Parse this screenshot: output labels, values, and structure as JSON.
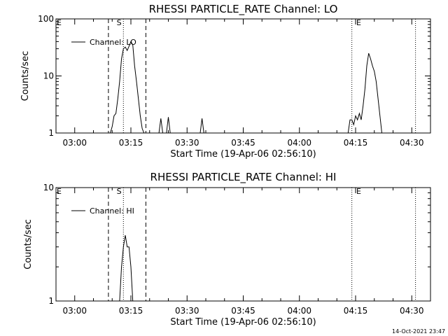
{
  "footer": {
    "timestamp": "14-Oct-2021 23:47"
  },
  "chart_data": [
    {
      "type": "line",
      "title": "RHESSI PARTICLE_RATE Channel: LO",
      "xlabel": "Start Time (19-Apr-06 02:56:10)",
      "ylabel": "Counts/sec",
      "y_scale": "log",
      "ylim": [
        1,
        100
      ],
      "y_ticks": [
        1,
        10,
        100
      ],
      "y_tick_labels": [
        "1",
        "10",
        "100"
      ],
      "xlim": [
        "02:55",
        "04:35"
      ],
      "x_ticks": [
        "03:00",
        "03:15",
        "03:30",
        "03:45",
        "04:00",
        "04:15",
        "04:30"
      ],
      "legend": {
        "position": "top-left",
        "entries": [
          "Channel: LO"
        ]
      },
      "series": [
        {
          "name": "Channel: LO",
          "x": [
            "03:09:30",
            "03:10",
            "03:10:30",
            "03:11",
            "03:11:30",
            "03:12",
            "03:12:30",
            "03:13",
            "03:13:30",
            "03:14",
            "03:14:30",
            "03:15",
            "03:15:30",
            "03:16",
            "03:16:30",
            "03:17",
            "03:17:30",
            "03:18",
            "03:18:30",
            "03:19",
            "03:19:30",
            "03:20",
            "03:22:30",
            "03:23",
            "03:23:30",
            "03:24:30",
            "03:25",
            "03:25:30",
            "03:33:30",
            "03:34",
            "03:34:30",
            "04:13",
            "04:13:30",
            "04:14",
            "04:14:30",
            "04:15",
            "04:15:30",
            "04:16",
            "04:16:30",
            "04:17",
            "04:17:30",
            "04:18",
            "04:18:30",
            "04:19",
            "04:19:30",
            "04:20",
            "04:20:30",
            "04:21",
            "04:21:30",
            "04:22",
            "04:22:30",
            "04:23"
          ],
          "y": [
            1,
            1.3,
            2,
            2.2,
            4,
            8,
            20,
            30,
            32,
            28,
            33,
            40,
            35,
            15,
            8,
            4,
            2,
            1.2,
            1,
            1,
            1,
            1,
            1,
            1.8,
            1,
            1,
            1.9,
            1,
            1,
            1.8,
            1,
            1,
            1.7,
            1.7,
            1.4,
            2,
            1.7,
            2.2,
            1.7,
            3,
            6,
            15,
            25,
            20,
            15,
            12,
            8,
            4,
            2,
            1,
            1,
            1
          ]
        }
      ],
      "annotations": [
        {
          "text": "E",
          "x": "02:55"
        },
        {
          "text": "S",
          "x": "03:11"
        },
        {
          "text": "E",
          "x": "04:15"
        }
      ],
      "vlines": [
        {
          "x": "03:09",
          "style": "dashed"
        },
        {
          "x": "03:13",
          "style": "dotted"
        },
        {
          "x": "03:19",
          "style": "dashed"
        },
        {
          "x": "04:14",
          "style": "dotted"
        },
        {
          "x": "04:31",
          "style": "dotted"
        }
      ]
    },
    {
      "type": "line",
      "title": "RHESSI PARTICLE_RATE Channel: HI",
      "xlabel": "Start Time (19-Apr-06 02:56:10)",
      "ylabel": "Counts/sec",
      "y_scale": "log",
      "ylim": [
        1,
        10
      ],
      "y_ticks": [
        1,
        10
      ],
      "y_tick_labels": [
        "1",
        "10"
      ],
      "xlim": [
        "02:55",
        "04:35"
      ],
      "x_ticks": [
        "03:00",
        "03:15",
        "03:30",
        "03:45",
        "04:00",
        "04:15",
        "04:30"
      ],
      "legend": {
        "position": "top-left",
        "entries": [
          "Channel: HI"
        ]
      },
      "series": [
        {
          "name": "Channel: HI",
          "x": [
            "03:11",
            "03:11:30",
            "03:12",
            "03:12:30",
            "03:13",
            "03:13:30",
            "03:14",
            "03:14:30",
            "03:15",
            "03:15:30",
            "03:16"
          ],
          "y": [
            1,
            1,
            1,
            2,
            3,
            3.8,
            3,
            3,
            2,
            1,
            1
          ]
        }
      ],
      "annotations": [
        {
          "text": "E",
          "x": "02:55"
        },
        {
          "text": "S",
          "x": "03:11"
        },
        {
          "text": "E",
          "x": "04:15"
        }
      ],
      "vlines": [
        {
          "x": "03:09",
          "style": "dashed"
        },
        {
          "x": "03:13",
          "style": "dotted"
        },
        {
          "x": "03:19",
          "style": "dashed"
        },
        {
          "x": "04:14",
          "style": "dotted"
        },
        {
          "x": "04:31",
          "style": "dotted"
        }
      ]
    }
  ]
}
